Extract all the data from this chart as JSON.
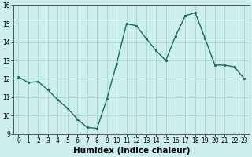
{
  "x": [
    0,
    1,
    2,
    3,
    4,
    5,
    6,
    7,
    8,
    9,
    10,
    11,
    12,
    13,
    14,
    15,
    16,
    17,
    18,
    19,
    20,
    21,
    22,
    23
  ],
  "y": [
    12.1,
    11.8,
    11.85,
    11.4,
    10.85,
    10.4,
    9.8,
    9.35,
    9.3,
    10.9,
    12.85,
    15.0,
    14.9,
    14.2,
    13.55,
    13.0,
    14.35,
    15.45,
    15.6,
    14.2,
    12.75,
    12.75,
    12.65,
    12.0
  ],
  "line_color": "#1a6b5a",
  "marker": "o",
  "marker_size": 1.8,
  "line_width": 1.0,
  "bg_color": "#cceeec",
  "grid_color": "#aad4d0",
  "xlabel": "Humidex (Indice chaleur)",
  "xlabel_fontsize": 7.5,
  "xlabel_fontweight": "bold",
  "xlim": [
    -0.5,
    23.5
  ],
  "ylim": [
    9,
    16
  ],
  "yticks": [
    9,
    10,
    11,
    12,
    13,
    14,
    15,
    16
  ],
  "xticks": [
    0,
    1,
    2,
    3,
    4,
    5,
    6,
    7,
    8,
    9,
    10,
    11,
    12,
    13,
    14,
    15,
    16,
    17,
    18,
    19,
    20,
    21,
    22,
    23
  ],
  "tick_fontsize": 5.5,
  "spine_color": "#555555",
  "title": ""
}
